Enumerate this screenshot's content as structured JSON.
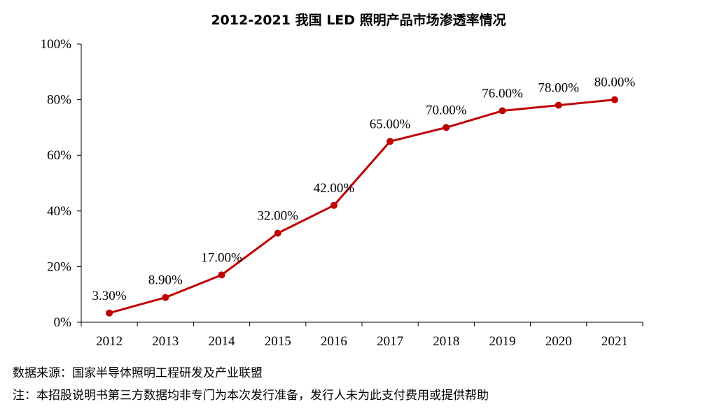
{
  "chart_data": {
    "type": "line",
    "title": "2012-2021 我国 LED 照明产品市场渗透率情况",
    "xlabel": "",
    "ylabel": "",
    "categories": [
      "2012",
      "2013",
      "2014",
      "2015",
      "2016",
      "2017",
      "2018",
      "2019",
      "2020",
      "2021"
    ],
    "series": [
      {
        "values": [
          3.3,
          8.9,
          17.0,
          32.0,
          42.0,
          65.0,
          70.0,
          76.0,
          78.0,
          80.0
        ],
        "labels": [
          "3.30%",
          "8.90%",
          "17.00%",
          "32.00%",
          "42.00%",
          "65.00%",
          "70.00%",
          "76.00%",
          "78.00%",
          "80.00%"
        ],
        "color": "#c00000"
      }
    ],
    "ylim": [
      0,
      100
    ],
    "yticks": [
      "0%",
      "20%",
      "40%",
      "60%",
      "80%",
      "100%"
    ],
    "grid": false,
    "legend": "none"
  },
  "notes": {
    "source": "数据来源：国家半导体照明工程研发及产业联盟",
    "disclaimer": "注：本招股说明书第三方数据均非专门为本次发行准备，发行人未为此支付费用或提供帮助"
  }
}
